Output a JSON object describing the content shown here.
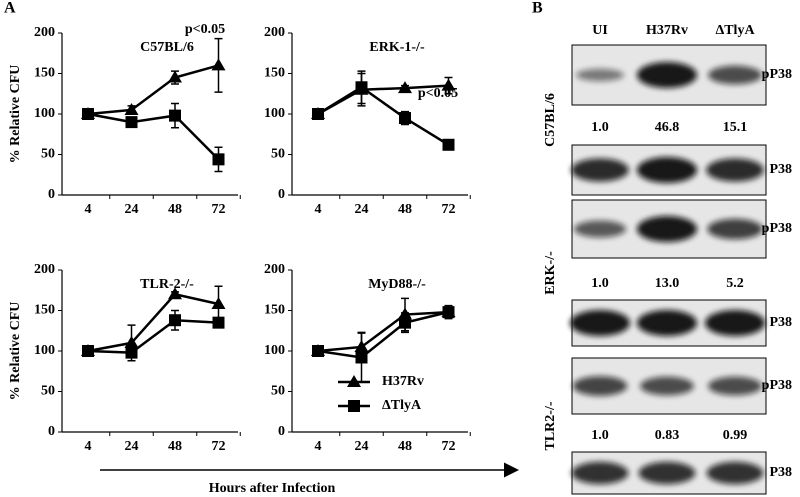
{
  "panel_a": "A",
  "panel_b": "B",
  "xlabel": "Hours after Infection",
  "chart_data": [
    {
      "type": "line",
      "title": "C57BL/6",
      "ylabel": "% Relative CFU",
      "annotation": "p<0.05",
      "categories": [
        "4",
        "24",
        "48",
        "72"
      ],
      "ylim": [
        0,
        200
      ],
      "yticks": [
        0,
        50,
        100,
        150,
        200
      ],
      "series": [
        {
          "color": "#000000",
          "marker": "triangle",
          "values": [
            100,
            105,
            145,
            160
          ],
          "errors": [
            5,
            5,
            8,
            33
          ]
        },
        {
          "color": "#000000",
          "marker": "square",
          "values": [
            100,
            90,
            98,
            44
          ],
          "errors": [
            6,
            5,
            15,
            15
          ]
        }
      ]
    },
    {
      "type": "line",
      "title": "ERK-1-/-",
      "annotation": "p<0.05",
      "categories": [
        "4",
        "24",
        "48",
        "72"
      ],
      "ylim": [
        0,
        200
      ],
      "yticks": [
        0,
        50,
        100,
        150,
        200
      ],
      "series": [
        {
          "color": "#000000",
          "marker": "triangle",
          "values": [
            100,
            130,
            132,
            135
          ],
          "errors": [
            3,
            20,
            3,
            10
          ]
        },
        {
          "color": "#000000",
          "marker": "square",
          "values": [
            100,
            133,
            95,
            62
          ],
          "errors": [
            3,
            20,
            8,
            3
          ]
        }
      ]
    },
    {
      "type": "line",
      "title": "TLR-2-/-",
      "ylabel": "% Relative CFU",
      "categories": [
        "4",
        "24",
        "48",
        "72"
      ],
      "ylim": [
        0,
        200
      ],
      "yticks": [
        0,
        50,
        100,
        150,
        200
      ],
      "series": [
        {
          "color": "#000000",
          "marker": "triangle",
          "values": [
            100,
            110,
            170,
            158
          ],
          "errors": [
            3,
            22,
            3,
            22
          ]
        },
        {
          "color": "#000000",
          "marker": "square",
          "values": [
            100,
            98,
            138,
            135
          ],
          "errors": [
            3,
            5,
            12,
            5
          ]
        }
      ]
    },
    {
      "type": "line",
      "title": "MyD88-/-",
      "categories": [
        "4",
        "24",
        "48",
        "72"
      ],
      "ylim": [
        0,
        200
      ],
      "yticks": [
        0,
        50,
        100,
        150,
        200
      ],
      "legend": "lower right",
      "series": [
        {
          "name": "H37Rv",
          "color": "#000000",
          "marker": "triangle",
          "values": [
            100,
            105,
            145,
            148
          ],
          "errors": [
            3,
            18,
            20,
            3
          ]
        },
        {
          "name": "ΔTlyA",
          "color": "#000000",
          "marker": "square",
          "values": [
            100,
            92,
            135,
            148
          ],
          "errors": [
            3,
            30,
            12,
            8
          ]
        }
      ]
    }
  ],
  "blot": {
    "columns": [
      "UI",
      "H37Rv",
      "ΔTlyA"
    ],
    "groups": [
      {
        "label": "C57BL/6",
        "phospho": "pP38",
        "total": "P38",
        "quant": [
          "1.0",
          "46.8",
          "15.1"
        ]
      },
      {
        "label": "ERK-/-",
        "phospho": "pP38",
        "total": "P38",
        "quant": [
          "1.0",
          "13.0",
          "5.2"
        ]
      },
      {
        "label": "TLR2-/-",
        "phospho": "pP38",
        "total": "P38",
        "quant": [
          "1.0",
          "0.83",
          "0.99"
        ]
      }
    ]
  }
}
